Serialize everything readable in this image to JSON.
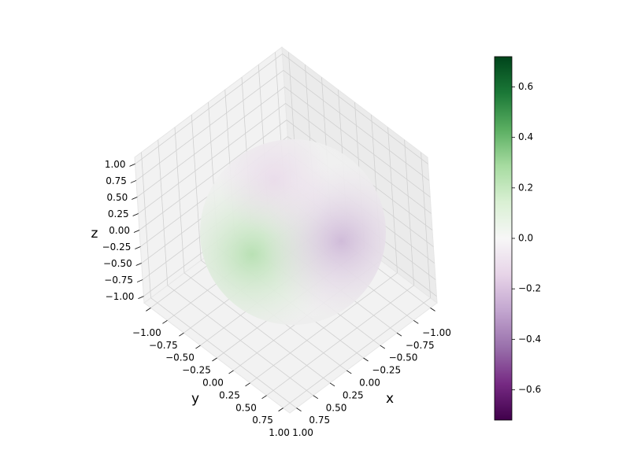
{
  "chart_data": {
    "type": "surface3d",
    "xlabel": "x",
    "ylabel": "y",
    "zlabel": "z",
    "xlim": [
      -1.1,
      1.1
    ],
    "ylim": [
      -1.1,
      1.1
    ],
    "zlim": [
      -1.1,
      1.1
    ],
    "xticks": [
      {
        "value": -1,
        "label": "−1.00"
      },
      {
        "value": -0.75,
        "label": "−0.75"
      },
      {
        "value": -0.5,
        "label": "−0.50"
      },
      {
        "value": -0.25,
        "label": "−0.25"
      },
      {
        "value": 0,
        "label": "0.00"
      },
      {
        "value": 0.25,
        "label": "0.25"
      },
      {
        "value": 0.5,
        "label": "0.50"
      },
      {
        "value": 0.75,
        "label": "0.75"
      },
      {
        "value": 1,
        "label": "1.00"
      }
    ],
    "yticks": [
      {
        "value": -1,
        "label": "−1.00"
      },
      {
        "value": -0.75,
        "label": "−0.75"
      },
      {
        "value": -0.5,
        "label": "−0.50"
      },
      {
        "value": -0.25,
        "label": "−0.25"
      },
      {
        "value": 0,
        "label": "0.00"
      },
      {
        "value": 0.25,
        "label": "0.25"
      },
      {
        "value": 0.5,
        "label": "0.50"
      },
      {
        "value": 0.75,
        "label": "0.75"
      },
      {
        "value": 1,
        "label": "1.00"
      }
    ],
    "zticks": [
      {
        "value": -1,
        "label": "−1.00"
      },
      {
        "value": -0.75,
        "label": "−0.75"
      },
      {
        "value": -0.5,
        "label": "−0.50"
      },
      {
        "value": -0.25,
        "label": "−0.25"
      },
      {
        "value": 0,
        "label": "0.00"
      },
      {
        "value": 0.25,
        "label": "0.25"
      },
      {
        "value": 0.5,
        "label": "0.50"
      },
      {
        "value": 0.75,
        "label": "0.75"
      },
      {
        "value": 1,
        "label": "1.00"
      }
    ],
    "grid": true,
    "colorbar": {
      "lim": [
        -0.72,
        0.72
      ],
      "ticks": [
        {
          "value": -0.6,
          "label": "−0.6"
        },
        {
          "value": -0.4,
          "label": "−0.4"
        },
        {
          "value": -0.2,
          "label": "−0.2"
        },
        {
          "value": 0,
          "label": "0.0"
        },
        0.2,
        0.4,
        0.6
      ],
      "colormap": "PRGn",
      "colors": [
        "#40004b",
        "#762a83",
        "#9970ab",
        "#c2a5cf",
        "#e7d4e8",
        "#f7f7f7",
        "#d9f0d3",
        "#a6dba0",
        "#5aae61",
        "#1b7837",
        "#00441b"
      ]
    }
  }
}
